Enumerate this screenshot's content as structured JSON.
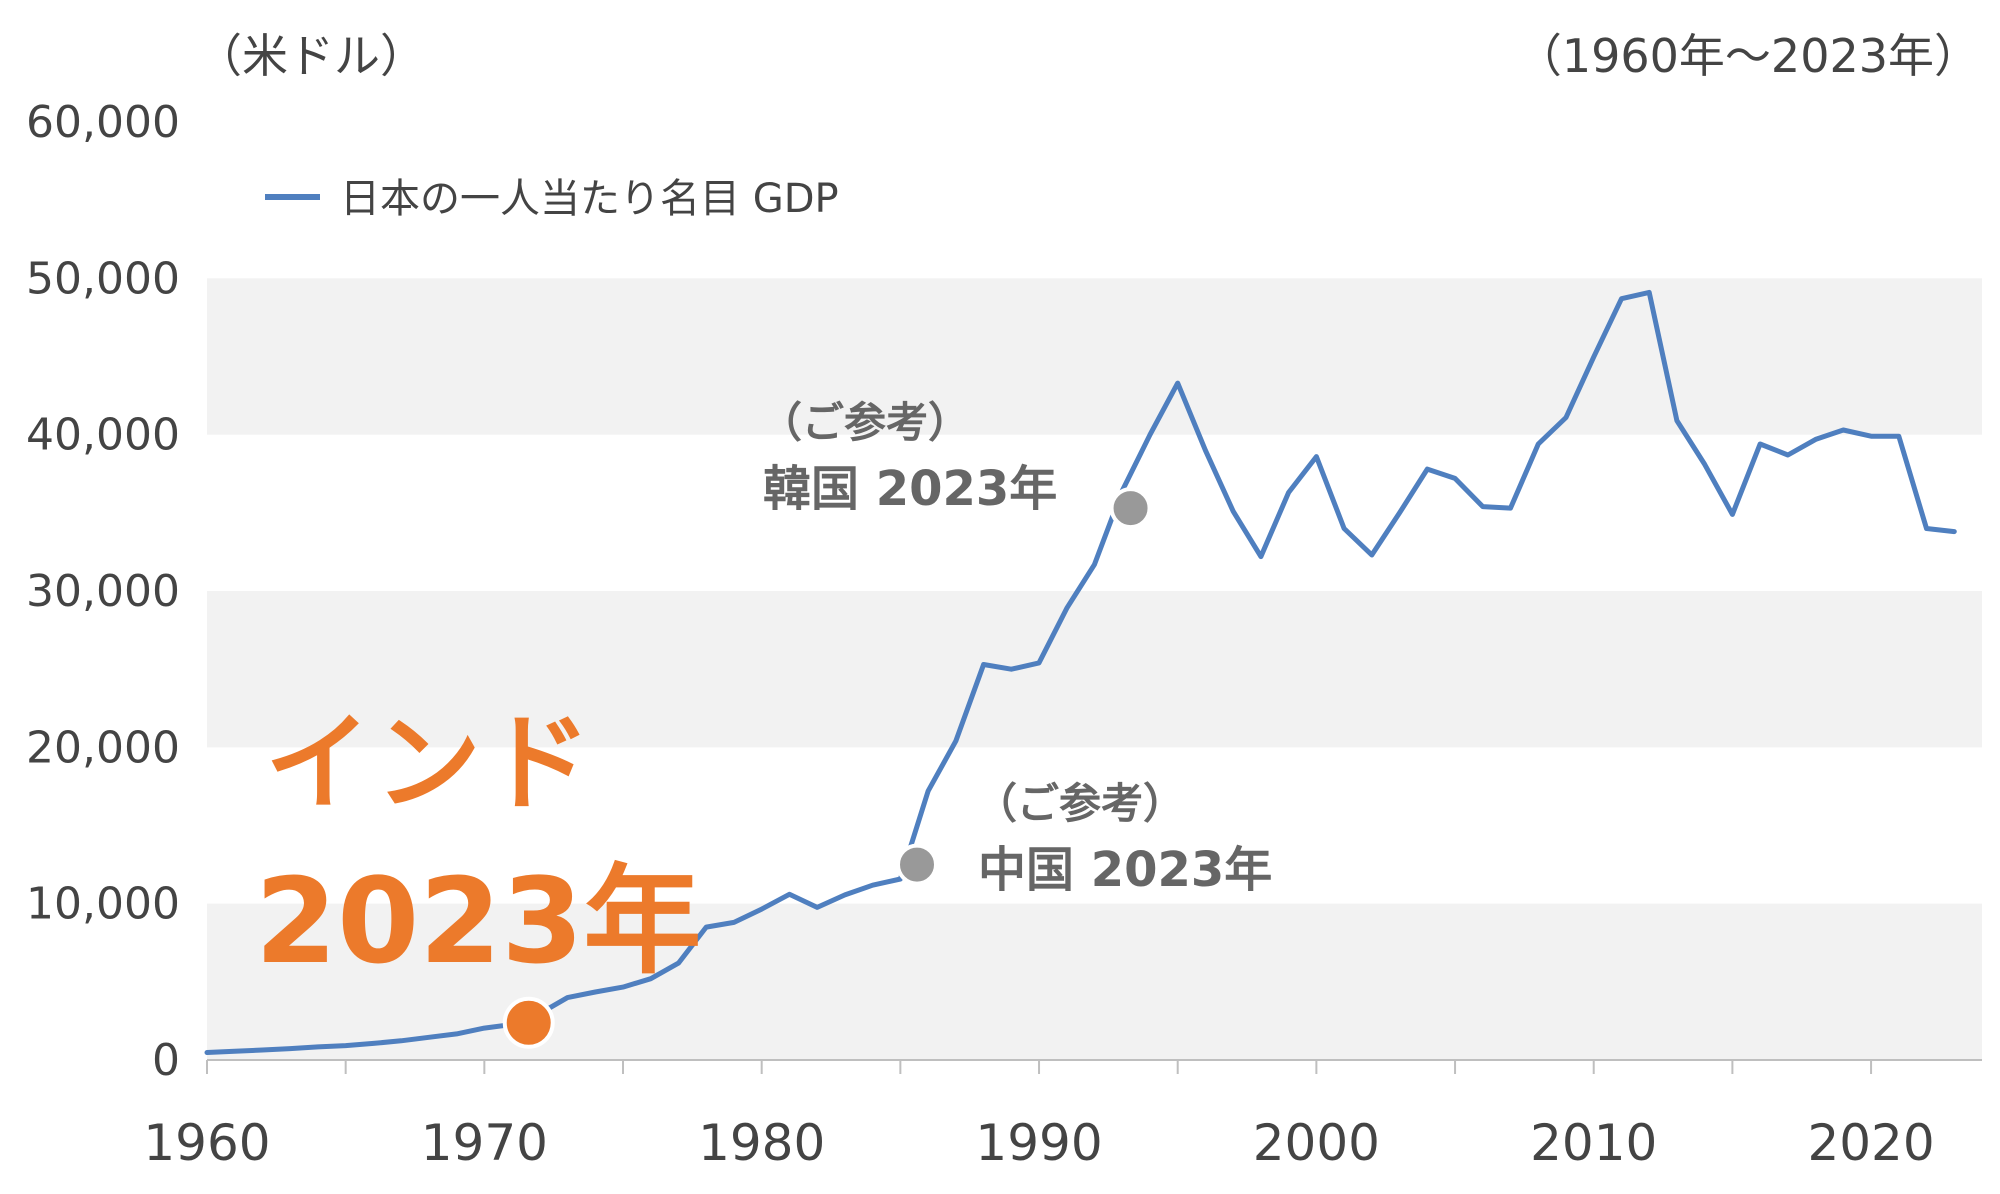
{
  "header": {
    "unit_label": "（米ドル）",
    "period_label": "（1960年〜2023年）"
  },
  "chart_data": {
    "type": "line",
    "title": "",
    "xlabel": "",
    "ylabel": "米ドル",
    "xlim": [
      1960,
      2024
    ],
    "ylim": [
      0,
      60000
    ],
    "y_ticks": [
      "0",
      "10,000",
      "20,000",
      "30,000",
      "40,000",
      "50,000",
      "60,000"
    ],
    "x_ticks": [
      "1960",
      "1970",
      "1980",
      "1990",
      "2000",
      "2010",
      "2020"
    ],
    "grid": "alternating horizontal bands",
    "legend_position": "top-left",
    "series": [
      {
        "name": "日本の一人当たり名目 GDP",
        "color": "#4F7FBF",
        "x": [
          1960,
          1961,
          1962,
          1963,
          1964,
          1965,
          1966,
          1967,
          1968,
          1969,
          1970,
          1971,
          1972,
          1973,
          1974,
          1975,
          1976,
          1977,
          1978,
          1979,
          1980,
          1981,
          1982,
          1983,
          1984,
          1985,
          1986,
          1987,
          1988,
          1989,
          1990,
          1991,
          1992,
          1993,
          1994,
          1995,
          1996,
          1997,
          1998,
          1999,
          2000,
          2001,
          2002,
          2003,
          2004,
          2005,
          2006,
          2007,
          2008,
          2009,
          2010,
          2011,
          2012,
          2013,
          2014,
          2015,
          2016,
          2017,
          2018,
          2019,
          2020,
          2021,
          2022,
          2023
        ],
        "values": [
          480,
          560,
          640,
          730,
          840,
          920,
          1060,
          1230,
          1450,
          1670,
          2040,
          2270,
          2970,
          3990,
          4350,
          4660,
          5200,
          6200,
          8500,
          8800,
          9650,
          10600,
          9760,
          10560,
          11180,
          11580,
          17200,
          20400,
          25300,
          25000,
          25400,
          28900,
          31700,
          36400,
          40000,
          43300,
          39000,
          35100,
          32200,
          36300,
          38600,
          34000,
          32300,
          35000,
          37800,
          37200,
          35400,
          35300,
          39400,
          41100,
          44970,
          48700,
          49100,
          40900,
          38100,
          34900,
          39400,
          38700,
          39700,
          40300,
          39900,
          39900,
          34000,
          33800
        ]
      }
    ],
    "annotations": [
      {
        "x": 1971.6,
        "y": 2380,
        "label_line1": "インド",
        "label_line2": "2023年",
        "color": "#EC7A2B"
      },
      {
        "x": 1985.6,
        "y": 12500,
        "label_line1": "（ご参考）",
        "label_line2": "中国 2023年",
        "color": "#999999"
      },
      {
        "x": 1993.3,
        "y": 35300,
        "label_line1": "（ご参考）",
        "label_line2": "韓国 2023年",
        "color": "#999999"
      }
    ]
  }
}
